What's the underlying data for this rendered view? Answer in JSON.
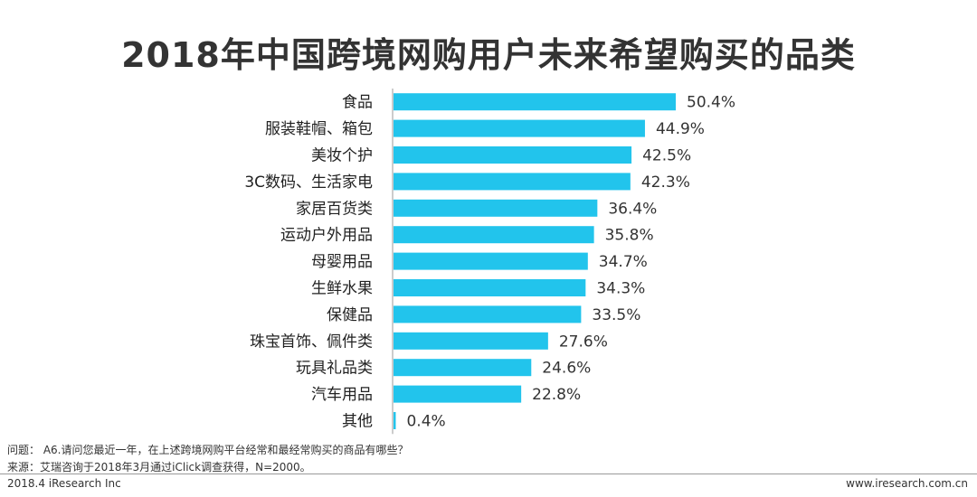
{
  "chart_data": {
    "type": "bar",
    "orientation": "horizontal",
    "title": "2018年中国跨境网购用户未来希望购买的品类",
    "categories": [
      "食品",
      "服装鞋帽、箱包",
      "美妆个护",
      "3C数码、生活家电",
      "家居百货类",
      "运动户外用品",
      "母婴用品",
      "生鲜水果",
      "保健品",
      "珠宝首饰、佩件类",
      "玩具礼品类",
      "汽车用品",
      "其他"
    ],
    "values": [
      50.4,
      44.9,
      42.5,
      42.3,
      36.4,
      35.8,
      34.7,
      34.3,
      33.5,
      27.6,
      24.6,
      22.8,
      0.4
    ],
    "value_labels": [
      "50.4%",
      "44.9%",
      "42.5%",
      "42.3%",
      "36.4%",
      "35.8%",
      "34.7%",
      "34.3%",
      "33.5%",
      "27.6%",
      "24.6%",
      "22.8%",
      "0.4%"
    ],
    "unit": "%",
    "bar_color": "#22C4EC",
    "axis_color": "#9A9A9A",
    "grid": false,
    "legend": "none"
  },
  "notes": {
    "question": "问题： A6.请问您最近一年，在上述跨境网购平台经常和最经常购买的商品有哪些？",
    "source": "来源：艾瑞咨询于2018年3月通过iClick调查获得，N=2000。"
  },
  "footer": {
    "left": "2018.4 iResearch Inc",
    "right": "www.iresearch.com.cn"
  }
}
